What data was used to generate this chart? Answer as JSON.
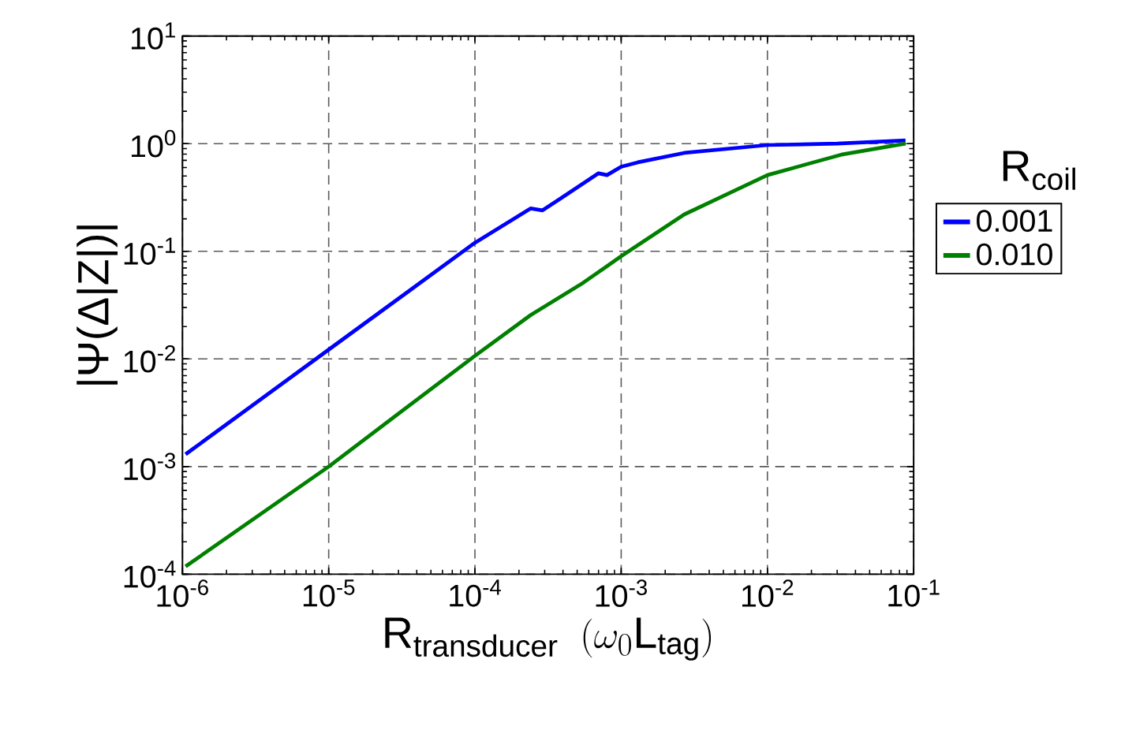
{
  "chart_data": {
    "type": "line",
    "xlabel": "\\mathrm{R}_{\\mathrm{transducer}}\\;\\;(\\omega_{0}\\mathrm{L}_{\\mathrm{tag}})",
    "ylabel": "|Ψ(Δ|Z|)|",
    "legend_title": "\\mathrm{R}_{\\mathrm{coil}}",
    "log": "xy",
    "grid": true,
    "legend": "right",
    "line_style": "solid",
    "marker": "none",
    "xlim": [
      1e-06,
      0.1
    ],
    "ylim": [
      0.0001,
      10
    ],
    "xticks": [
      {
        "value": 1e-06,
        "label": "10$^{-6}$"
      },
      {
        "value": 1e-05,
        "label": "10$^{-5}$"
      },
      {
        "value": 0.0001,
        "label": "10$^{-4}$"
      },
      {
        "value": 0.001,
        "label": "10$^{-3}$"
      },
      {
        "value": 0.01,
        "label": "10$^{-2}$"
      },
      {
        "value": 0.1,
        "label": "10$^{-1}$"
      }
    ],
    "yticks": [
      {
        "value": 0.0001,
        "label": "10$^{-4}$"
      },
      {
        "value": 0.001,
        "label": "10$^{-3}$"
      },
      {
        "value": 0.01,
        "label": "10$^{-2}$"
      },
      {
        "value": 0.1,
        "label": "10$^{-1}$"
      },
      {
        "value": 1,
        "label": "10$^{0}$"
      },
      {
        "value": 10,
        "label": "10$^{1}$"
      }
    ],
    "series": [
      {
        "name": "0.001",
        "color": "#0000ff",
        "x": [
          1.05e-06,
          1e-05,
          0.0001,
          0.00024,
          0.00029,
          0.0004,
          0.0007,
          0.0008,
          0.001,
          0.0013,
          0.0027,
          0.01,
          0.03,
          0.088
        ],
        "values": [
          0.0013,
          0.0122,
          0.12,
          0.25,
          0.24,
          0.32,
          0.53,
          0.51,
          0.61,
          0.67,
          0.82,
          0.97,
          1.0,
          1.07
        ]
      },
      {
        "name": "0.010",
        "color": "#008000",
        "x": [
          1.05e-06,
          1e-05,
          0.0001,
          0.00024,
          0.00055,
          0.001,
          0.0027,
          0.01,
          0.032,
          0.088
        ],
        "values": [
          0.000118,
          0.001,
          0.0107,
          0.0255,
          0.051,
          0.09,
          0.22,
          0.51,
          0.79,
          1.0
        ]
      }
    ]
  }
}
